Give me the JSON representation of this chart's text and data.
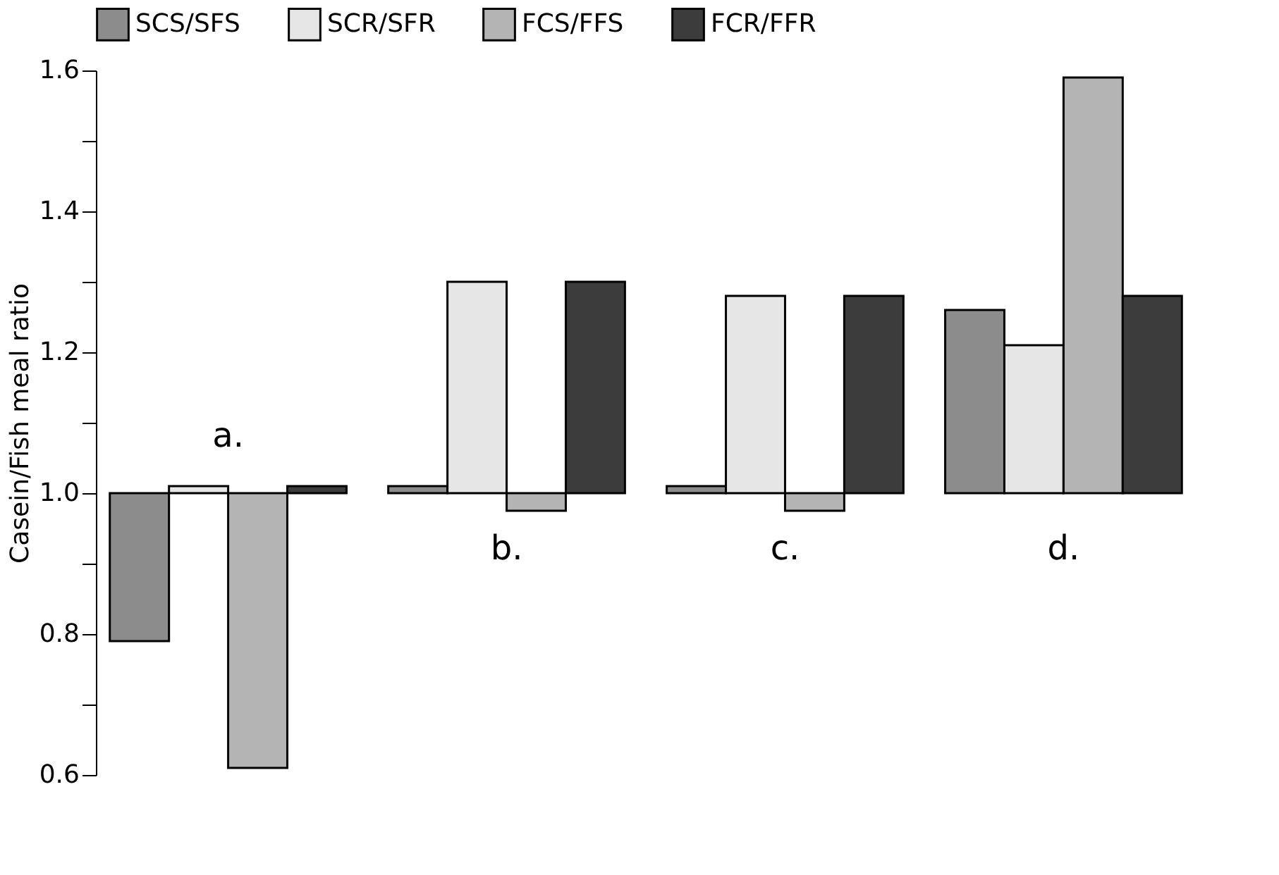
{
  "chart_data": {
    "type": "bar",
    "ylabel": "Casein/Fish meal ratio",
    "categories": [
      "a.",
      "b.",
      "c.",
      "d."
    ],
    "series": [
      {
        "name": "SCS/SFS",
        "color": "#8c8c8c",
        "base": [
          1.0,
          1.0,
          1.0,
          1.0
        ],
        "values": [
          -0.21,
          0.01,
          0.01,
          0.26
        ]
      },
      {
        "name": "SCR/SFR",
        "color": "#e6e6e6",
        "base": [
          1.0,
          1.0,
          1.0,
          1.0
        ],
        "values": [
          0.01,
          0.3,
          0.28,
          0.21
        ]
      },
      {
        "name": "FCS/FFS",
        "color": "#b4b4b4",
        "base": [
          1.0,
          1.0,
          1.0,
          1.0
        ],
        "values": [
          -0.39,
          -0.025,
          -0.025,
          0.59
        ]
      },
      {
        "name": "FCR/FFR",
        "color": "#3c3c3c",
        "base": [
          1.0,
          1.0,
          1.0,
          1.0
        ],
        "values": [
          0.01,
          0.3,
          0.28,
          0.28
        ]
      }
    ],
    "ylim": [
      0.6,
      1.6
    ],
    "yticks": [
      {
        "value": 0.6,
        "label": "0.6"
      },
      {
        "value": 0.7,
        "label": null
      },
      {
        "value": 0.8,
        "label": "0.8"
      },
      {
        "value": 0.9,
        "label": null
      },
      {
        "value": 1.0,
        "label": "1.0"
      },
      {
        "value": 1.1,
        "label": null
      },
      {
        "value": 1.2,
        "label": "1.2"
      },
      {
        "value": 1.3,
        "label": null
      },
      {
        "value": 1.4,
        "label": "1.4"
      },
      {
        "value": 1.5,
        "label": null
      },
      {
        "value": 1.6,
        "label": "1.6"
      }
    ],
    "grid": false,
    "legend": "top"
  }
}
